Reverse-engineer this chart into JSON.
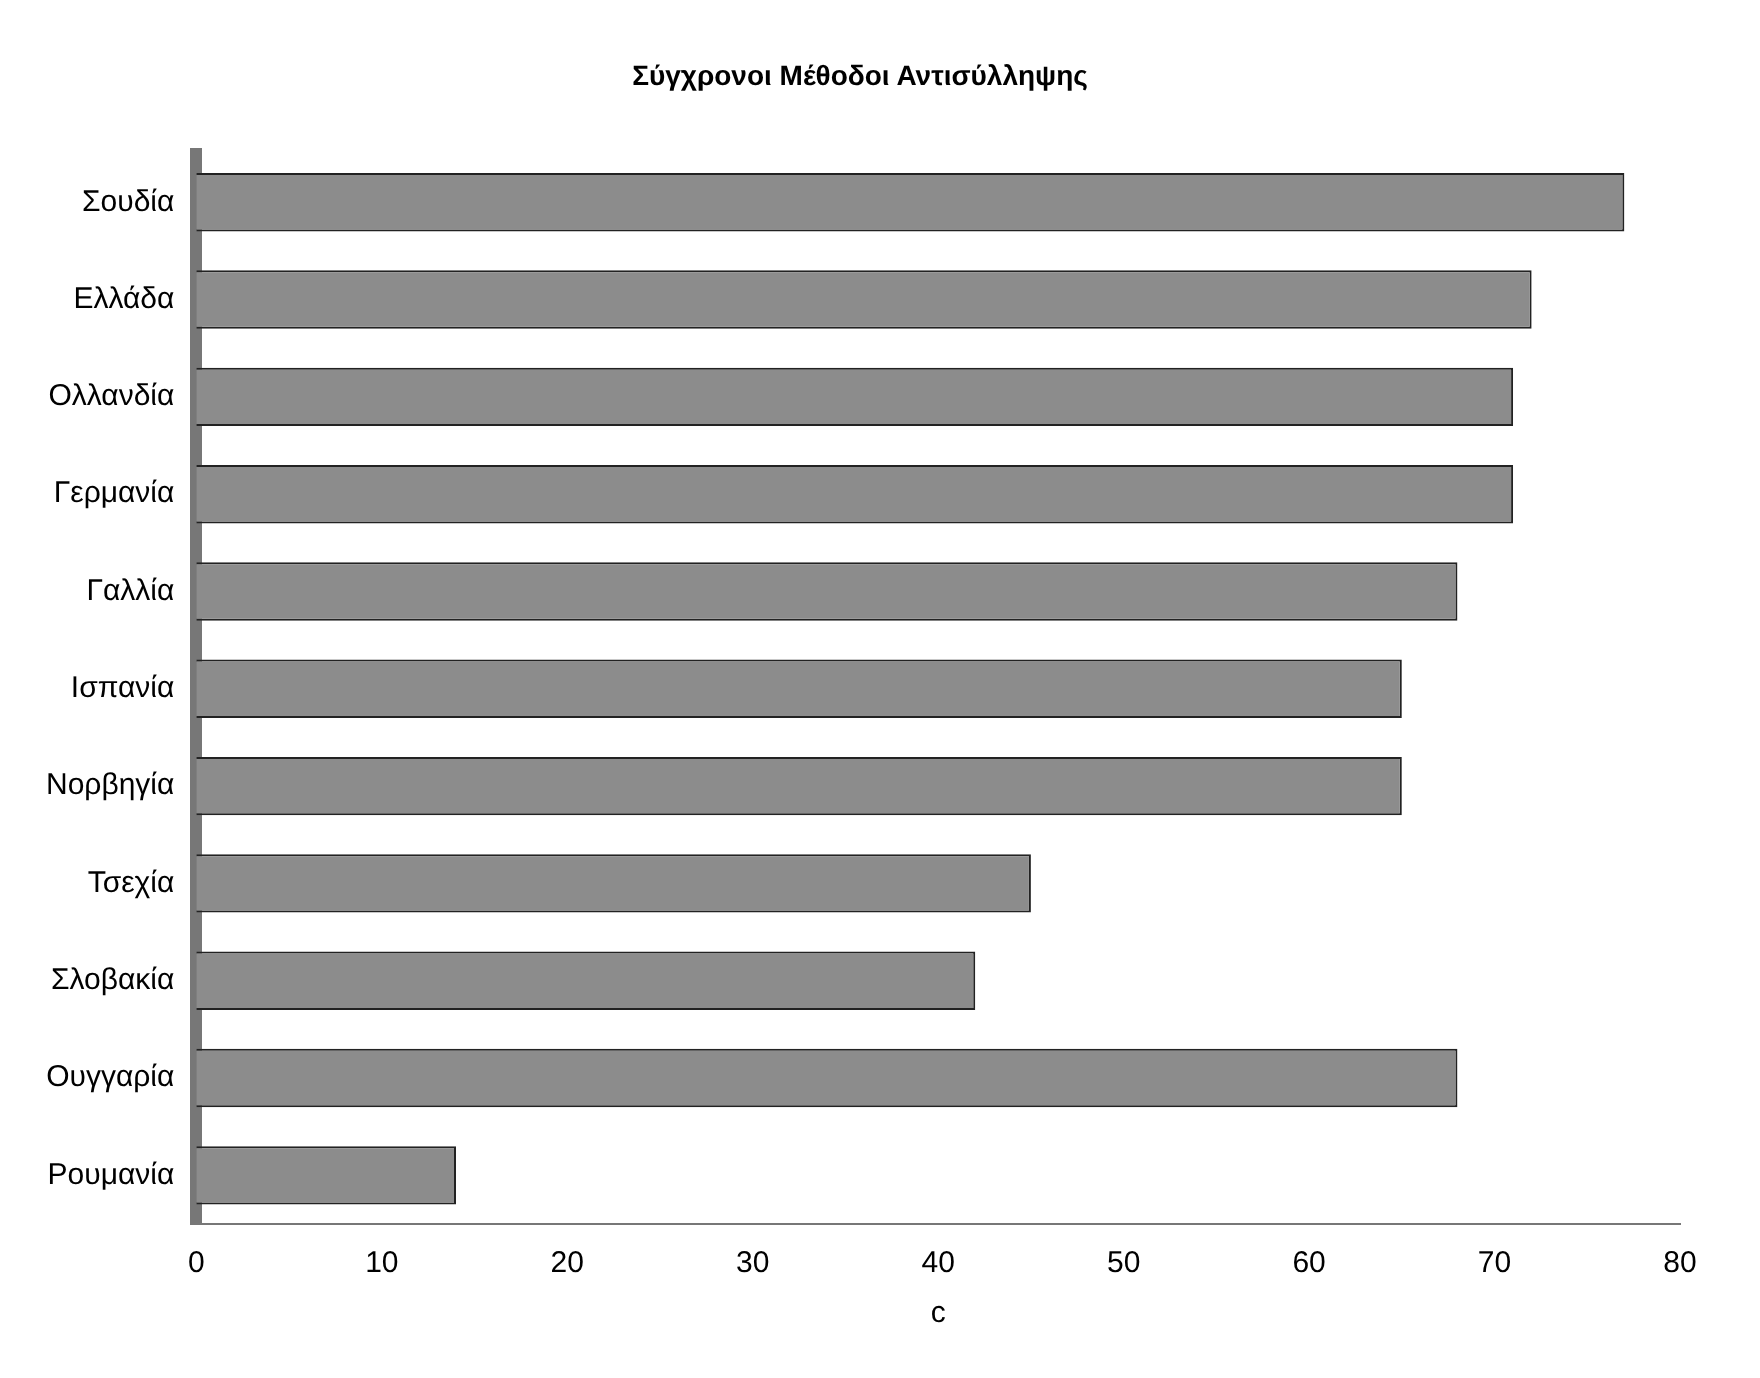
{
  "chart_data": {
    "type": "bar",
    "orientation": "horizontal",
    "title": "Σύγχρονοι Μέθοδοι Αντισύλληψης",
    "xlabel": "c",
    "categories": [
      "Σουδία",
      "Ελλάδα",
      "Ολλανδία",
      "Γερμανία",
      "Γαλλία",
      "Ισπανία",
      "Νορβηγία",
      "Τσεχία",
      "Σλοβακία",
      "Ουγγαρία",
      "Ρουμανία"
    ],
    "values": [
      77,
      72,
      71,
      71,
      68,
      65,
      65,
      45,
      42,
      68,
      14
    ],
    "color": "#8c8c8c",
    "xlim": [
      0,
      80
    ],
    "xticks": [
      0,
      10,
      20,
      30,
      40,
      50,
      60,
      70,
      80
    ],
    "grid": false,
    "legend": false
  }
}
